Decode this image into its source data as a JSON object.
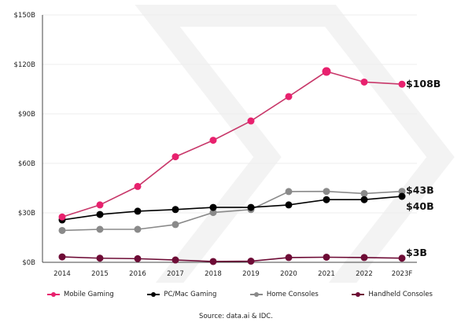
{
  "chart_data": {
    "type": "line",
    "categories": [
      "2014",
      "2015",
      "2016",
      "2017",
      "2018",
      "2019",
      "2020",
      "2021",
      "2022",
      "2023F"
    ],
    "ylim": [
      0,
      150
    ],
    "yticks": [
      0,
      30,
      60,
      90,
      120,
      150
    ],
    "ytick_labels": [
      "$0B",
      "$30B",
      "$60B",
      "$90B",
      "$120B",
      "$150B"
    ],
    "grid": true,
    "legend_position": "bottom",
    "series": [
      {
        "name": "Mobile Gaming",
        "color": "#e8216e",
        "line_color": "#c8386a",
        "values": [
          27.5,
          34.8,
          46,
          64,
          74,
          85.7,
          100.5,
          115.7,
          109.3,
          108
        ],
        "end_label": "$108B"
      },
      {
        "name": "PC/Mac Gaming",
        "color": "#000000",
        "line_color": "#000000",
        "values": [
          25.7,
          29,
          31,
          32,
          33.3,
          33.3,
          34.8,
          38,
          38,
          40
        ],
        "end_label": "$40B"
      },
      {
        "name": "Home Consoles",
        "color": "#8a8a8a",
        "line_color": "#8a8a8a",
        "values": [
          19.3,
          20,
          20,
          22.9,
          30.2,
          32,
          42.9,
          43,
          41.7,
          43
        ],
        "end_label": "$43B"
      },
      {
        "name": "Handheld Consoles",
        "color": "#6e0c36",
        "line_color": "#6e0c36",
        "values": [
          3.3,
          2.5,
          2.2,
          1.4,
          0.5,
          0.7,
          2.9,
          3.1,
          2.9,
          2.5
        ],
        "end_label": "$3B"
      }
    ]
  },
  "source": "Source: data.ai & IDC."
}
